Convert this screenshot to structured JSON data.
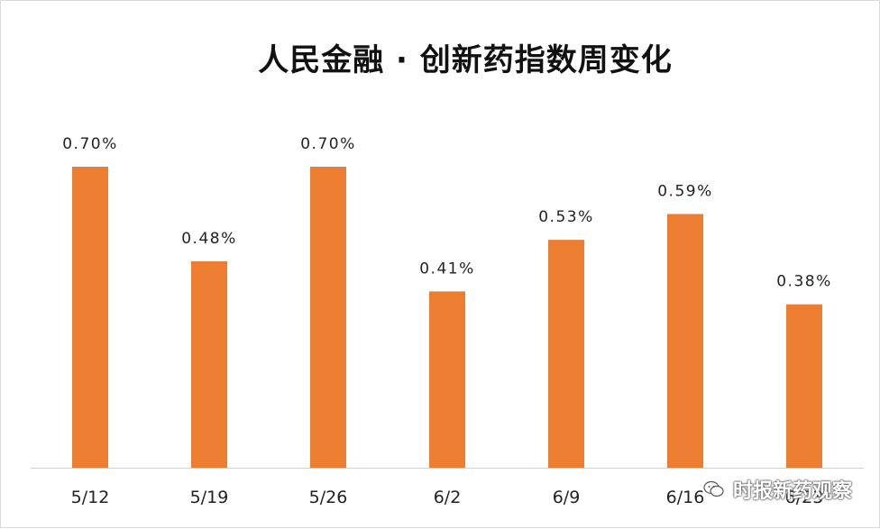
{
  "chart_data": {
    "type": "bar",
    "title": "人民金融 · 创新药指数周变化",
    "categories": [
      "5/12",
      "5/19",
      "5/26",
      "6/2",
      "6/9",
      "6/16",
      "6/23"
    ],
    "values": [
      0.7,
      0.48,
      0.7,
      0.41,
      0.53,
      0.59,
      0.38
    ],
    "data_labels": [
      "0.70%",
      "0.48%",
      "0.70%",
      "0.41%",
      "0.53%",
      "0.59%",
      "0.38%"
    ],
    "ylim": [
      0,
      0.7
    ],
    "grid": false,
    "legend": "none",
    "bar_color": "#ED7D31"
  },
  "watermark": {
    "text": "时报新药观察",
    "icon": "wechat-icon"
  }
}
